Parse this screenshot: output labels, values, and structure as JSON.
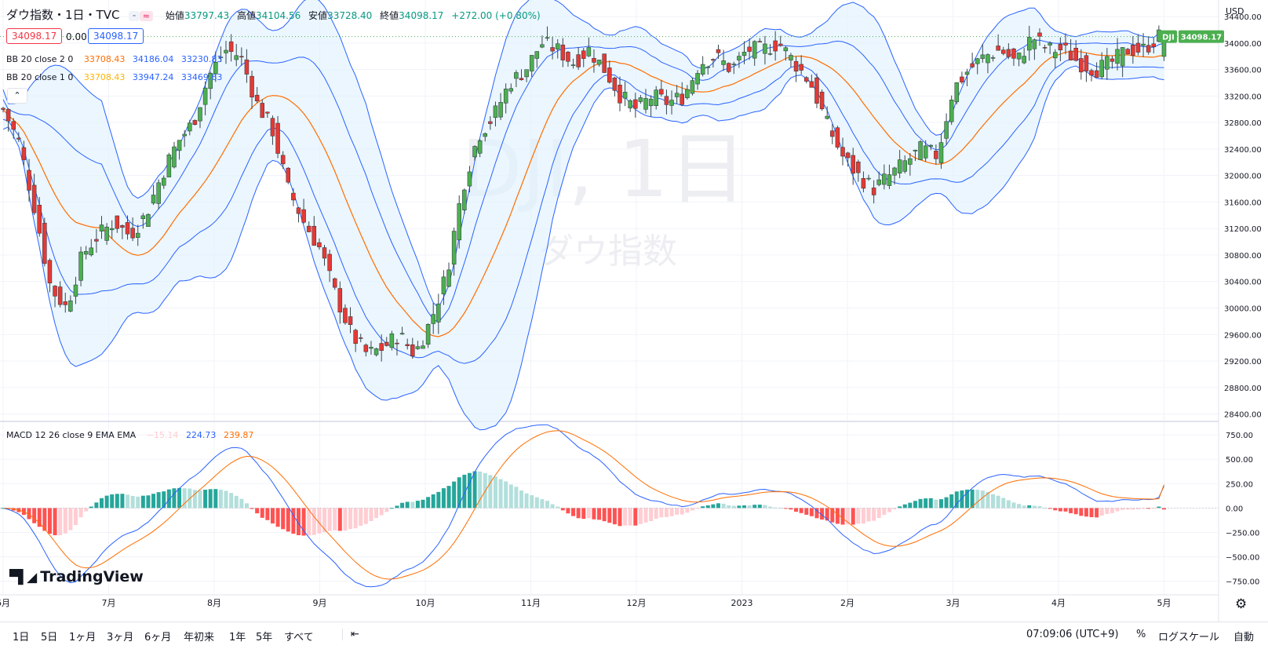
{
  "header": {
    "symbol_title": "ダウ指数・1日・TVC",
    "open_label": "始値",
    "open": "33797.43",
    "high_label": "高値",
    "high": "34104.56",
    "low_label": "安値",
    "low": "33728.40",
    "close_label": "終値",
    "close": "34098.17",
    "change": "+272.00 (+0.80%)",
    "sell_price": "34098.17",
    "spread": "0.00",
    "buy_price": "34098.17",
    "currency": "USD"
  },
  "legends": {
    "bb2": {
      "label": "BB 20 close 2 0",
      "basis": "33708.43",
      "upper": "34186.04",
      "lower": "33230.83"
    },
    "bb1": {
      "label": "BB 20 close 1 0",
      "basis": "33708.43",
      "upper": "33947.24",
      "lower": "33469.63"
    },
    "macd": {
      "label": "MACD 12 26 close 9 EMA EMA",
      "hist": "−15.14",
      "macd": "224.73",
      "signal": "239.87"
    }
  },
  "watermark": {
    "line1": "DJI, 1日",
    "line2": "ダウ指数"
  },
  "last_price_tag": {
    "symbol": "DJI",
    "value": "34098.17"
  },
  "logo_text": "TradingView",
  "toolbar": {
    "timeframes": [
      "1日",
      "5日",
      "1ヶ月",
      "3ヶ月",
      "6ヶ月",
      "年初来",
      "1年",
      "5年",
      "すべて"
    ],
    "time": "07:09:06 (UTC+9)",
    "percent": "%",
    "log": "ログスケール",
    "auto": "自動"
  },
  "colors": {
    "up": "#26a69a",
    "down": "#ef5350",
    "up_body": "#2e7d32",
    "bb_band": "#2962ff",
    "bb_basis": "#ff6d00",
    "band_fill": "#e3f2fd",
    "grid": "#f0f3fa"
  },
  "chart_data": [
    {
      "type": "candlestick",
      "title": "ダウ指数・1日・TVC",
      "y_ticks": [
        28400,
        28800,
        29200,
        29600,
        30000,
        30400,
        30800,
        31200,
        31600,
        32000,
        32400,
        32800,
        33200,
        33600,
        34000,
        34400
      ],
      "y_tick_labels": [
        "28400.00",
        "28800.00",
        "29200.00",
        "29600.00",
        "30000.00",
        "30400.00",
        "30800.00",
        "31200.00",
        "31600.00",
        "32000.00",
        "32400.00",
        "32800.00",
        "33200.00",
        "33600.00",
        "34000.00",
        "34400.00"
      ],
      "ylim": [
        28300,
        34650
      ],
      "x_labels": [
        {
          "label": "6月",
          "month": 0
        },
        {
          "label": "7月",
          "month": 1
        },
        {
          "label": "8月",
          "month": 2
        },
        {
          "label": "9月",
          "month": 3
        },
        {
          "label": "10月",
          "month": 4
        },
        {
          "label": "11月",
          "month": 5
        },
        {
          "label": "12月",
          "month": 6
        },
        {
          "label": "2023",
          "month": 7
        },
        {
          "label": "2月",
          "month": 8
        },
        {
          "label": "3月",
          "month": 9
        },
        {
          "label": "4月",
          "month": 10
        },
        {
          "label": "5月",
          "month": 11
        }
      ],
      "close_anchor_months": [
        0.0,
        0.15,
        0.3,
        0.45,
        0.6,
        0.75,
        0.9,
        1.05,
        1.2,
        1.35,
        1.5,
        1.65,
        1.8,
        1.95,
        2.1,
        2.25,
        2.4,
        2.55,
        2.7,
        2.85,
        3.0,
        3.15,
        3.3,
        3.45,
        3.6,
        3.75,
        3.9,
        4.05,
        4.2,
        4.35,
        4.5,
        4.65,
        4.8,
        4.95,
        5.1,
        5.25,
        5.4,
        5.55,
        5.7,
        5.85,
        6.0,
        6.15,
        6.3,
        6.45,
        6.6,
        6.75,
        6.9,
        7.05,
        7.2,
        7.35,
        7.5,
        7.65,
        7.8,
        7.95,
        8.1,
        8.25,
        8.4,
        8.55,
        8.7,
        8.85,
        9.0,
        9.15,
        9.3,
        9.45,
        9.6,
        9.75,
        9.9,
        10.05,
        10.2,
        10.35,
        10.5,
        10.65,
        10.8,
        10.95
      ],
      "close_anchor_values": [
        33000,
        32500,
        31500,
        30300,
        30000,
        30800,
        31100,
        31300,
        31100,
        31400,
        32000,
        32500,
        32800,
        33500,
        33900,
        33800,
        33100,
        32700,
        31800,
        31300,
        30900,
        30200,
        29600,
        29300,
        29400,
        29600,
        29300,
        29800,
        30500,
        31800,
        32600,
        32900,
        33400,
        33600,
        34000,
        33900,
        33700,
        33900,
        33600,
        33200,
        33000,
        33200,
        33100,
        33200,
        33700,
        33800,
        33600,
        33900,
        33900,
        34000,
        33700,
        33400,
        32800,
        32300,
        32000,
        31800,
        32000,
        32200,
        32400,
        32300,
        33300,
        33600,
        33800,
        33900,
        33700,
        34098,
        33900,
        33900,
        33700,
        33600,
        33700,
        33900,
        33900,
        34098
      ],
      "bollinger": {
        "period": 20,
        "std_outer": 2,
        "std_inner": 1
      }
    },
    {
      "type": "macd",
      "title": "MACD 12 26 close 9 EMA EMA",
      "y_ticks": [
        750,
        500,
        250,
        0,
        -250,
        -500,
        -750
      ],
      "y_tick_labels": [
        "750.00",
        "500.00",
        "250.00",
        "0.00",
        "−250.00",
        "−500.00",
        "−750.00"
      ],
      "ylim": [
        -890,
        880
      ],
      "last": {
        "histogram": -15.14,
        "macd": 224.73,
        "signal": 239.87
      }
    }
  ]
}
